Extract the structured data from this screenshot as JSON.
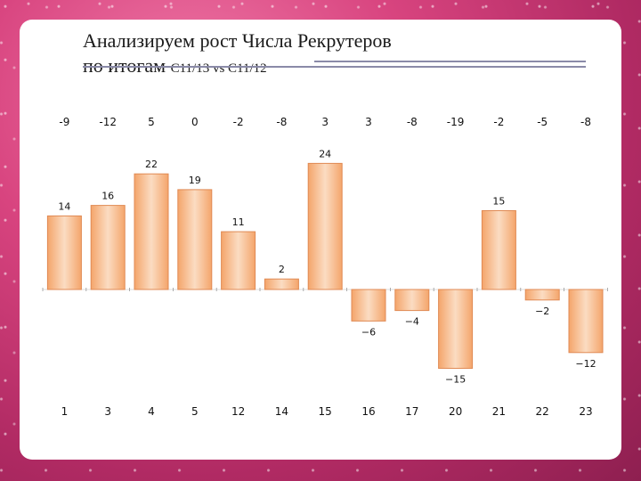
{
  "title": {
    "line1": "Анализируем рост Числа Рекрутеров",
    "line2_main": "по итогам ",
    "line2_sub": "C11/13 vs C11/12"
  },
  "colors": {
    "bar_fill_center": "#fbdcc2",
    "bar_fill_edge": "#f4a56b",
    "bar_stroke": "#e08a54",
    "panel": "#ffffff",
    "background": "#d8447f"
  },
  "chart_data": {
    "type": "bar",
    "categories": [
      "1",
      "3",
      "4",
      "5",
      "12",
      "14",
      "15",
      "16",
      "17",
      "20",
      "21",
      "22",
      "23"
    ],
    "values": [
      14,
      16,
      22,
      19,
      11,
      2,
      24,
      -6,
      -4,
      -15,
      15,
      -2,
      -12
    ],
    "value_labels": [
      "14",
      "16",
      "22",
      "19",
      "11",
      "2",
      "24",
      "−6",
      "−4",
      "−15",
      "15",
      "−2",
      "−12"
    ],
    "top_labels": [
      "-9",
      "-12",
      "5",
      "0",
      "-2",
      "-8",
      "3",
      "3",
      "-8",
      "-19",
      "-2",
      "-5",
      "-8"
    ],
    "ylim": [
      -15,
      24
    ],
    "grid": false,
    "legend": "none"
  }
}
